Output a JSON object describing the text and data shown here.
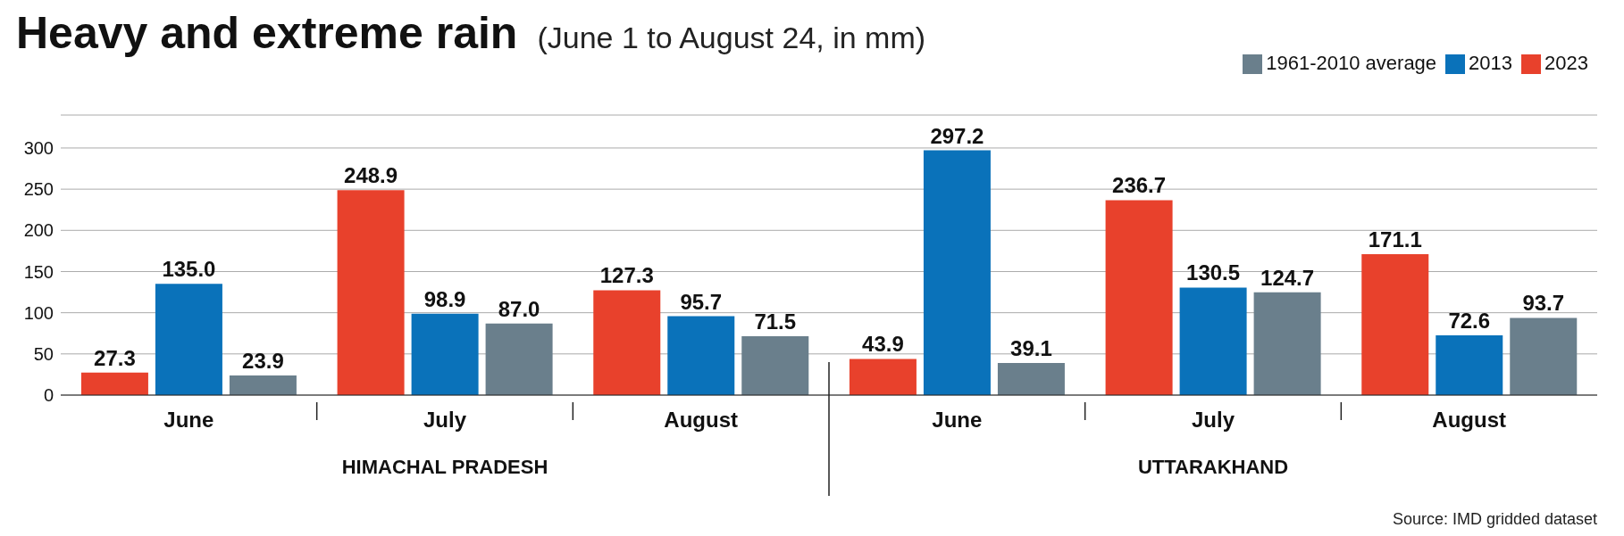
{
  "chart_data": {
    "type": "bar",
    "title": "Heavy and extreme rain",
    "subtitle": "(June 1 to August 24, in mm)",
    "categories": [
      "June",
      "July",
      "August",
      "June",
      "July",
      "August"
    ],
    "series": [
      {
        "name": "2023",
        "color": "#e8412c",
        "values": [
          27.3,
          248.9,
          127.3,
          43.9,
          236.7,
          171.1
        ],
        "value_labels": [
          "27.3",
          "248.9",
          "127.3",
          "43.9",
          "236.7",
          "171.1"
        ]
      },
      {
        "name": "2013",
        "color": "#0a72ba",
        "values": [
          135,
          98.9,
          95.7,
          297.2,
          130.5,
          72.6
        ],
        "value_labels": [
          "135.0",
          "98.9",
          "95.7",
          "297.2",
          "130.5",
          "72.6"
        ]
      },
      {
        "name": "1961-2010 average",
        "color": "#6a7f8c",
        "values": [
          23.9,
          87,
          71.5,
          39.1,
          124.7,
          93.7
        ],
        "value_labels": [
          "23.9",
          "87.0",
          "71.5",
          "39.1",
          "124.7",
          "93.7"
        ]
      }
    ],
    "ylim": [
      0,
      340
    ],
    "yticks": [
      0,
      50,
      100,
      150,
      200,
      250,
      300
    ],
    "grid": "y",
    "legend": "top right",
    "annotations": [
      "HIMACHAL PRADESH",
      "UTTARAKHAND",
      "Source: IMD gridded dataset"
    ]
  }
}
